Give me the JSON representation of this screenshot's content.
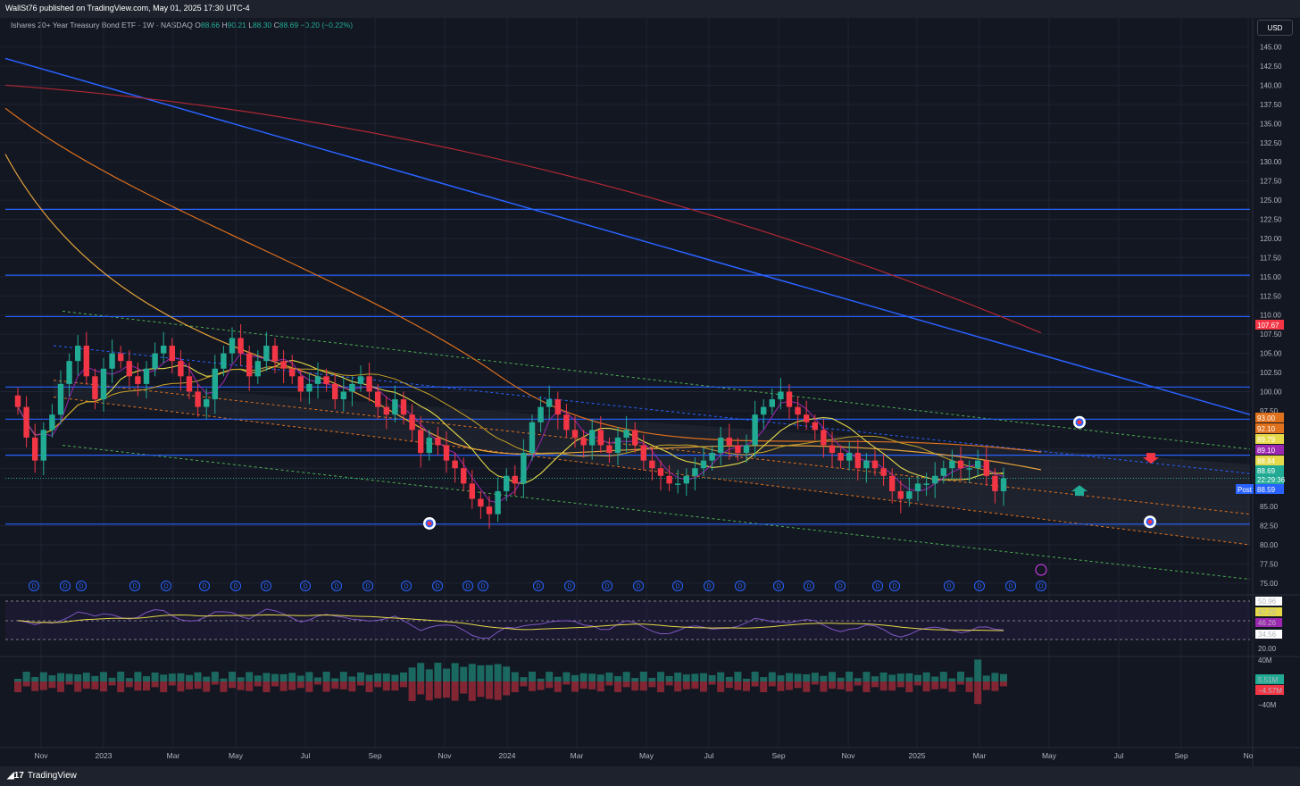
{
  "header": {
    "published": "WallSt76 published on TradingView.com, May 01, 2025 17:30 UTC-4",
    "symbol": "Ishares 20+ Year Treasury Bond ETF · 1W · NASDAQ",
    "ohlc": [
      {
        "k": "O",
        "v": "88.66"
      },
      {
        "k": "H",
        "v": "90.21"
      },
      {
        "k": "L",
        "v": "88.30"
      },
      {
        "k": "C",
        "v": "88.69"
      },
      {
        "k": "",
        "v": "−0.20 (−0.22%)"
      }
    ]
  },
  "currency": "USD",
  "footer": {
    "brand": "TradingView"
  },
  "colors": {
    "bg": "#131722",
    "grid": "#1f2333",
    "up": "#22ab94",
    "down": "#f23645",
    "blue_line": "#2962ff",
    "red_ma": "#b22833",
    "orange_ma": "#e0711d",
    "yellow_ma": "#e5d94a",
    "purple": "#9c27b0"
  },
  "chart_data": {
    "type": "candlestick",
    "title": "Ishares 20+ Year Treasury Bond ETF · 1W · NASDAQ",
    "timeframe": "1W",
    "ylim": [
      73,
      146
    ],
    "yticks": [
      "145.00",
      "142.50",
      "140.00",
      "137.50",
      "135.00",
      "132.50",
      "130.00",
      "127.50",
      "125.00",
      "122.50",
      "120.00",
      "117.50",
      "115.00",
      "112.50",
      "110.00",
      "107.50",
      "105.00",
      "102.50",
      "100.00",
      "97.50",
      "95.00",
      "92.50",
      "90.00",
      "87.50",
      "85.00",
      "82.50",
      "80.00",
      "77.50",
      "75.00"
    ],
    "xticks": [
      "Nov",
      "2023",
      "Mar",
      "May",
      "Jul",
      "Sep",
      "Nov",
      "2024",
      "Mar",
      "May",
      "Jul",
      "Sep",
      "Nov",
      "2025",
      "Mar",
      "May",
      "Jul",
      "Sep",
      "No"
    ],
    "horizontal_levels": [
      123.8,
      115.2,
      109.8,
      100.6,
      96.4,
      91.7,
      82.7
    ],
    "weekly_closes": [
      98,
      94,
      91,
      95,
      97,
      101,
      104,
      106,
      102,
      99,
      103,
      105,
      104,
      102,
      101,
      103,
      105,
      106,
      104,
      102,
      100,
      98,
      99,
      103,
      105,
      107,
      105,
      102,
      104,
      106,
      104,
      103,
      102,
      100,
      101,
      102,
      101,
      99,
      100,
      101,
      102,
      100,
      98,
      97,
      99,
      97,
      95,
      92,
      94,
      93,
      91,
      90,
      88,
      86,
      85,
      84,
      87,
      89,
      88,
      92,
      96,
      98,
      99,
      97,
      95,
      94,
      93,
      95,
      93,
      92,
      94,
      95,
      93,
      91,
      90,
      89,
      88,
      88,
      89,
      90,
      91,
      92,
      94,
      93,
      92,
      93,
      97,
      98,
      99,
      100,
      98,
      97,
      96,
      95,
      93,
      92,
      91,
      92,
      90,
      91,
      90,
      89,
      87,
      86,
      87,
      88,
      88,
      89,
      90,
      91,
      90,
      90,
      91,
      89,
      87,
      88.69
    ],
    "price_labels": [
      {
        "text": "107.67",
        "color": "#f23645"
      },
      {
        "text": "93.00",
        "color": "#e0711d"
      },
      {
        "text": "92.10",
        "color": "#e0711d"
      },
      {
        "text": "89.79",
        "color": "#e5d94a"
      },
      {
        "text": "89.10",
        "color": "#9c27b0"
      },
      {
        "text": "88.84",
        "color": "#e5d94a"
      },
      {
        "text": "88.69",
        "color": "#22ab94"
      },
      {
        "text": "22:29:36",
        "color": "#22ab94"
      },
      {
        "text": "Post",
        "color": "#2962ff"
      },
      {
        "text": "88.59",
        "color": "#2962ff"
      }
    ],
    "rsi": {
      "yticks": [
        "50.96",
        "47.22",
        "46.26",
        "34.56",
        "20.00"
      ],
      "label_colors": [
        "#131722",
        "#e5d94a",
        "#9c27b0",
        "#131722",
        "#131722"
      ]
    },
    "volume": {
      "yticks": [
        "40M",
        "5.51M",
        "−4.57M",
        "−40M"
      ],
      "label_colors": [
        "#131722",
        "#22ab94",
        "#f23645",
        "#131722"
      ]
    },
    "dividend_marker": "D"
  }
}
